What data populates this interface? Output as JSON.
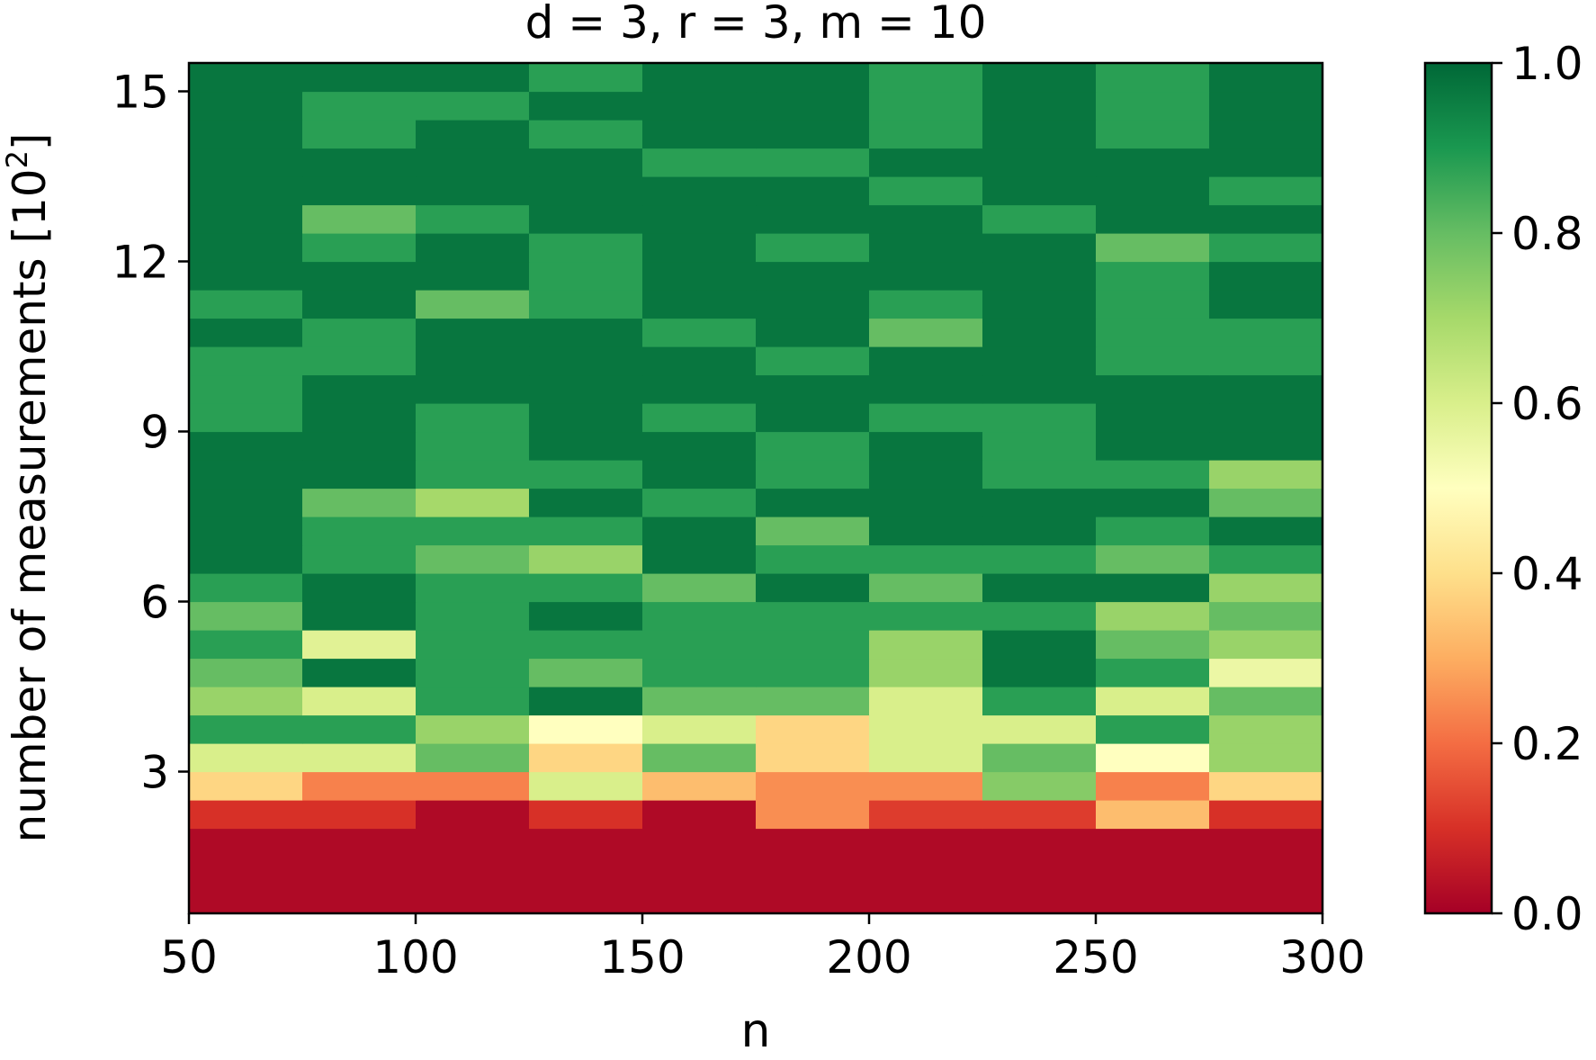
{
  "chart_data": {
    "type": "heatmap",
    "title": "d = 3, r = 3, m = 10",
    "xlabel": "n",
    "ylabel": "number of measurements [10",
    "ylabel_superscript": "2",
    "ylabel_close": "]",
    "xlim": [
      50,
      300
    ],
    "ylim": [
      0.5,
      15.5
    ],
    "x_ticks": [
      50,
      100,
      150,
      200,
      250,
      300
    ],
    "y_ticks": [
      3,
      6,
      9,
      12,
      15
    ],
    "x_tick_labels": [
      "50",
      "100",
      "150",
      "200",
      "250",
      "300"
    ],
    "y_tick_labels": [
      "3",
      "6",
      "9",
      "12",
      "15"
    ],
    "x_columns": [
      50,
      75,
      100,
      125,
      150,
      175,
      200,
      225,
      250,
      275,
      300
    ],
    "y_row_edges": [
      0.5,
      2.0,
      2.5,
      3.0,
      3.5,
      4.0,
      4.5,
      5.0,
      5.5,
      6.0,
      6.5,
      7.0,
      7.5,
      8.0,
      8.5,
      9.0,
      9.5,
      10.0,
      10.5,
      11.0,
      11.5,
      12.0,
      12.5,
      13.0,
      13.5,
      14.0,
      14.5,
      15.0,
      15.5
    ],
    "values": [
      [
        0.02,
        0.02,
        0.02,
        0.02,
        0.02,
        0.02,
        0.02,
        0.02,
        0.02,
        0.02
      ],
      [
        0.1,
        0.1,
        0.02,
        0.1,
        0.02,
        0.25,
        0.12,
        0.12,
        0.33,
        0.1
      ],
      [
        0.38,
        0.23,
        0.23,
        0.6,
        0.33,
        0.25,
        0.25,
        0.75,
        0.23,
        0.38
      ],
      [
        0.6,
        0.6,
        0.8,
        0.38,
        0.8,
        0.38,
        0.6,
        0.8,
        0.5,
        0.72
      ],
      [
        0.88,
        0.88,
        0.72,
        0.5,
        0.6,
        0.38,
        0.6,
        0.6,
        0.88,
        0.72
      ],
      [
        0.72,
        0.6,
        0.88,
        0.97,
        0.8,
        0.8,
        0.6,
        0.88,
        0.6,
        0.8
      ],
      [
        0.8,
        0.97,
        0.88,
        0.8,
        0.88,
        0.88,
        0.72,
        0.97,
        0.88,
        0.55
      ],
      [
        0.88,
        0.58,
        0.88,
        0.88,
        0.88,
        0.88,
        0.72,
        0.97,
        0.8,
        0.72
      ],
      [
        0.8,
        0.97,
        0.88,
        0.97,
        0.88,
        0.88,
        0.88,
        0.88,
        0.72,
        0.8
      ],
      [
        0.88,
        0.97,
        0.88,
        0.88,
        0.8,
        0.97,
        0.8,
        0.97,
        0.97,
        0.72
      ],
      [
        0.97,
        0.88,
        0.8,
        0.72,
        0.97,
        0.88,
        0.88,
        0.88,
        0.8,
        0.88
      ],
      [
        0.97,
        0.88,
        0.88,
        0.88,
        0.97,
        0.8,
        0.97,
        0.97,
        0.88,
        0.97
      ],
      [
        0.97,
        0.8,
        0.7,
        0.97,
        0.88,
        0.97,
        0.97,
        0.97,
        0.97,
        0.8
      ],
      [
        0.97,
        0.97,
        0.88,
        0.88,
        0.97,
        0.88,
        0.97,
        0.88,
        0.88,
        0.72
      ],
      [
        0.97,
        0.97,
        0.88,
        0.97,
        0.97,
        0.88,
        0.97,
        0.88,
        0.97,
        0.97
      ],
      [
        0.88,
        0.97,
        0.88,
        0.97,
        0.88,
        0.97,
        0.88,
        0.88,
        0.97,
        0.97
      ],
      [
        0.88,
        0.97,
        0.97,
        0.97,
        0.97,
        0.97,
        0.97,
        0.97,
        0.97,
        0.97
      ],
      [
        0.88,
        0.88,
        0.97,
        0.97,
        0.97,
        0.88,
        0.97,
        0.97,
        0.88,
        0.88
      ],
      [
        0.97,
        0.88,
        0.97,
        0.97,
        0.88,
        0.97,
        0.8,
        0.97,
        0.88,
        0.88
      ],
      [
        0.88,
        0.97,
        0.8,
        0.88,
        0.97,
        0.97,
        0.88,
        0.97,
        0.88,
        0.97
      ],
      [
        0.97,
        0.97,
        0.97,
        0.88,
        0.97,
        0.97,
        0.97,
        0.97,
        0.88,
        0.97
      ],
      [
        0.97,
        0.88,
        0.97,
        0.88,
        0.97,
        0.88,
        0.97,
        0.97,
        0.8,
        0.88
      ],
      [
        0.97,
        0.8,
        0.88,
        0.97,
        0.97,
        0.97,
        0.97,
        0.88,
        0.97,
        0.97
      ],
      [
        0.97,
        0.97,
        0.97,
        0.97,
        0.97,
        0.97,
        0.88,
        0.97,
        0.97,
        0.88
      ],
      [
        0.97,
        0.97,
        0.97,
        0.97,
        0.88,
        0.88,
        0.97,
        0.97,
        0.97,
        0.97
      ],
      [
        0.97,
        0.88,
        0.97,
        0.88,
        0.97,
        0.97,
        0.88,
        0.97,
        0.88,
        0.97
      ],
      [
        0.97,
        0.88,
        0.88,
        0.97,
        0.97,
        0.97,
        0.88,
        0.97,
        0.88,
        0.97
      ],
      [
        0.97,
        0.97,
        0.97,
        0.88,
        0.97,
        0.97,
        0.88,
        0.97,
        0.88,
        0.97
      ]
    ],
    "colormap": "RdYlGn",
    "colormap_stops": [
      "#a50026",
      "#d73027",
      "#f46d43",
      "#fdae61",
      "#fee08b",
      "#ffffbf",
      "#d9ef8b",
      "#a6d96a",
      "#66bd63",
      "#1a9850",
      "#006837"
    ],
    "colorbar": {
      "range": [
        0.0,
        1.0
      ],
      "ticks": [
        0.0,
        0.2,
        0.4,
        0.6,
        0.8,
        1.0
      ],
      "tick_labels": [
        "0.0",
        "0.2",
        "0.4",
        "0.6",
        "0.8",
        "1.0"
      ]
    },
    "grid": false,
    "legend": "none"
  }
}
